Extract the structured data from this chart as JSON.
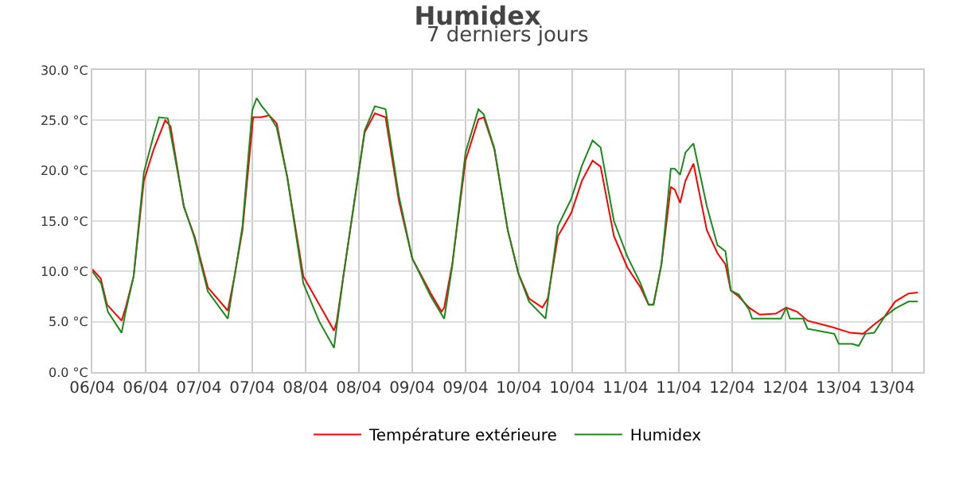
{
  "chart_data": {
    "type": "line",
    "title": "Humidex",
    "subtitle": "7 derniers jours",
    "xlim": [
      "--04-06T00:00",
      "--04-13T19:00"
    ],
    "xticks": [
      {
        "value": "--04-06T00:00",
        "label": "06/04"
      },
      {
        "value": "--04-06T12:00",
        "label": "06/04"
      },
      {
        "value": "--04-07T00:00",
        "label": "07/04"
      },
      {
        "value": "--04-07T12:00",
        "label": "07/04"
      },
      {
        "value": "--04-08T00:00",
        "label": "08/04"
      },
      {
        "value": "--04-08T12:00",
        "label": "08/04"
      },
      {
        "value": "--04-09T00:00",
        "label": "09/04"
      },
      {
        "value": "--04-09T12:00",
        "label": "09/04"
      },
      {
        "value": "--04-10T00:00",
        "label": "10/04"
      },
      {
        "value": "--04-10T12:00",
        "label": "10/04"
      },
      {
        "value": "--04-11T00:00",
        "label": "11/04"
      },
      {
        "value": "--04-11T12:00",
        "label": "11/04"
      },
      {
        "value": "--04-12T00:00",
        "label": "12/04"
      },
      {
        "value": "--04-12T12:00",
        "label": "12/04"
      },
      {
        "value": "--04-13T00:00",
        "label": "13/04"
      },
      {
        "value": "--04-13T12:00",
        "label": "13/04"
      }
    ],
    "ylim": [
      0,
      30
    ],
    "yticks": [
      {
        "value": 0,
        "label": "0.0 °C"
      },
      {
        "value": 5,
        "label": "5.0 °C"
      },
      {
        "value": 10,
        "label": "10.0 °C"
      },
      {
        "value": 15,
        "label": "15.0 °C"
      },
      {
        "value": 20,
        "label": "20.0 °C"
      },
      {
        "value": 25,
        "label": "25.0 °C"
      },
      {
        "value": 30,
        "label": "30.0 °C"
      }
    ],
    "grid": true,
    "legend": "bottom",
    "marker": "none",
    "line_style": "solid",
    "series": [
      {
        "name": "Température extérieure",
        "color": "#ff0000",
        "x": [
          "--04-06T00:00",
          "--04-06T01:54",
          "--04-06T03:18",
          "--04-06T06:36",
          "--04-06T07:30",
          "--04-06T09:18",
          "--04-06T11:36",
          "--04-06T13:48",
          "--04-06T16:24",
          "--04-06T17:36",
          "--04-06T20:36",
          "--04-06T23:00",
          "--04-07T02:00",
          "--04-07T06:30",
          "--04-07T08:00",
          "--04-07T09:48",
          "--04-07T12:12",
          "--04-07T14:00",
          "--04-07T15:48",
          "--04-07T17:30",
          "--04-07T19:54",
          "--04-07T23:30",
          "--04-08T03:06",
          "--04-08T06:24",
          "--04-08T07:00",
          "--04-08T08:30",
          "--04-08T10:54",
          "--04-08T13:18",
          "--04-08T15:36",
          "--04-08T18:00",
          "--04-08T21:00",
          "--04-09T00:00",
          "--04-09T04:12",
          "--04-09T06:36",
          "--04-09T07:12",
          "--04-09T09:00",
          "--04-09T12:00",
          "--04-09T14:54",
          "--04-09T16:06",
          "--04-09T18:30",
          "--04-09T21:30",
          "--04-09T23:54",
          "--04-10T02:18",
          "--04-10T05:18",
          "--04-10T06:30",
          "--04-10T08:48",
          "--04-10T11:48",
          "--04-10T14:12",
          "--04-10T16:36",
          "--04-10T18:24",
          "--04-10T21:24",
          "--04-11T00:24",
          "--04-11T03:24",
          "--04-11T05:12",
          "--04-11T06:18",
          "--04-11T08:06",
          "--04-11T10:12",
          "--04-11T11:06",
          "--04-11T12:18",
          "--04-11T13:30",
          "--04-11T15:18",
          "--04-11T18:18",
          "--04-11T20:42",
          "--04-11T22:30",
          "--04-11T23:42",
          "--04-12T01:30",
          "--04-12T03:48",
          "--04-12T06:12",
          "--04-12T09:48",
          "--04-12T12:12",
          "--04-12T14:36",
          "--04-12T17:00",
          "--04-12T20:30",
          "--04-12T23:00",
          "--04-13T02:36",
          "--04-13T05:30",
          "--04-13T07:54",
          "--04-13T10:18",
          "--04-13T12:42",
          "--04-13T15:42",
          "--04-13T17:48"
        ],
        "values": [
          10.2,
          9.3,
          6.7,
          5.1,
          6.4,
          9.5,
          19.0,
          22.1,
          25.0,
          24.4,
          16.4,
          13.5,
          8.4,
          6.1,
          9.5,
          14.1,
          25.3,
          25.3,
          25.5,
          24.7,
          19.3,
          9.5,
          6.7,
          4.1,
          5.0,
          9.5,
          16.7,
          23.8,
          25.7,
          25.3,
          17.0,
          11.3,
          7.8,
          6.0,
          6.4,
          10.7,
          21.0,
          25.1,
          25.3,
          22.1,
          14.1,
          9.8,
          7.3,
          6.4,
          7.3,
          13.5,
          15.8,
          19.0,
          21.0,
          20.4,
          13.5,
          10.4,
          8.4,
          6.7,
          6.7,
          10.7,
          18.4,
          18.1,
          16.8,
          19.0,
          20.7,
          14.1,
          11.8,
          10.7,
          8.1,
          7.5,
          6.4,
          5.7,
          5.8,
          6.4,
          6.0,
          5.1,
          4.7,
          4.4,
          3.9,
          3.8,
          4.7,
          5.5,
          7.0,
          7.8,
          7.9
        ]
      },
      {
        "name": "Humidex",
        "color": "#1a8a1a",
        "x": [
          "--04-06T00:00",
          "--04-06T02:00",
          "--04-06T03:30",
          "--04-06T06:36",
          "--04-06T07:30",
          "--04-06T09:18",
          "--04-06T11:36",
          "--04-06T13:48",
          "--04-06T15:00",
          "--04-06T17:00",
          "--04-06T20:36",
          "--04-06T23:00",
          "--04-07T02:00",
          "--04-07T06:30",
          "--04-07T08:00",
          "--04-07T09:48",
          "--04-07T12:00",
          "--04-07T13:00",
          "--04-07T14:00",
          "--04-07T15:48",
          "--04-07T17:30",
          "--04-07T19:54",
          "--04-07T23:30",
          "--04-08T03:06",
          "--04-08T06:24",
          "--04-08T07:00",
          "--04-08T08:30",
          "--04-08T10:54",
          "--04-08T13:18",
          "--04-08T15:36",
          "--04-08T18:00",
          "--04-08T21:00",
          "--04-09T00:00",
          "--04-09T04:12",
          "--04-09T07:12",
          "--04-09T09:00",
          "--04-09T12:00",
          "--04-09T14:54",
          "--04-09T16:06",
          "--04-09T18:30",
          "--04-09T21:30",
          "--04-09T23:54",
          "--04-10T02:18",
          "--04-10T06:00",
          "--04-10T08:48",
          "--04-10T11:48",
          "--04-10T14:12",
          "--04-10T16:36",
          "--04-10T18:24",
          "--04-10T21:24",
          "--04-11T00:24",
          "--04-11T03:24",
          "--04-11T05:12",
          "--04-11T06:18",
          "--04-11T08:06",
          "--04-11T10:12",
          "--04-11T11:06",
          "--04-11T12:18",
          "--04-11T13:30",
          "--04-11T15:18",
          "--04-11T18:18",
          "--04-11T20:42",
          "--04-11T22:30",
          "--04-11T23:42",
          "--04-12T01:30",
          "--04-12T03:48",
          "--04-12T04:30",
          "--04-12T11:00",
          "--04-12T12:12",
          "--04-12T13:00",
          "--04-12T16:00",
          "--04-12T17:00",
          "--04-12T20:30",
          "--04-12T23:00",
          "--04-13T00:00",
          "--04-13T03:00",
          "--04-13T04:30",
          "--04-13T06:00",
          "--04-13T08:00",
          "--04-13T10:18",
          "--04-13T12:42",
          "--04-13T15:42",
          "--04-13T17:48"
        ],
        "values": [
          10.0,
          8.8,
          6.0,
          3.9,
          6.0,
          9.5,
          19.8,
          23.5,
          25.3,
          25.2,
          16.5,
          13.3,
          8.0,
          5.3,
          9.5,
          14.5,
          26.0,
          27.2,
          26.5,
          25.5,
          24.3,
          19.3,
          8.8,
          5.0,
          2.4,
          4.5,
          9.5,
          16.7,
          24.0,
          26.4,
          26.1,
          17.5,
          11.3,
          7.5,
          5.3,
          10.5,
          21.8,
          26.1,
          25.6,
          22.2,
          14.1,
          9.8,
          7.0,
          5.3,
          14.5,
          17.2,
          20.5,
          23.0,
          22.3,
          15.0,
          11.5,
          8.8,
          6.7,
          6.7,
          10.7,
          20.2,
          20.2,
          19.6,
          21.8,
          22.7,
          16.5,
          12.6,
          12.0,
          8.1,
          7.7,
          6.2,
          5.3,
          5.3,
          6.4,
          5.3,
          5.3,
          4.3,
          4.0,
          3.8,
          2.8,
          2.8,
          2.6,
          3.8,
          3.9,
          5.5,
          6.3,
          7.0,
          7.0
        ]
      }
    ]
  }
}
